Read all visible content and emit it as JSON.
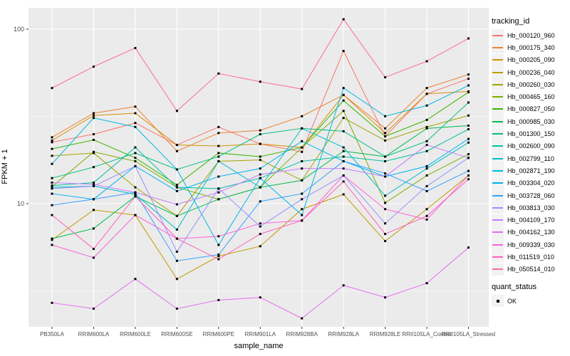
{
  "figure": {
    "background": "#FFFFFF",
    "panel_background": "#EBEBEB",
    "gridline_color": "#FFFFFF",
    "axis_text_color": "#4D4D4D",
    "tick_color": "#333333"
  },
  "chart_data": {
    "type": "line",
    "title": "",
    "xlabel": "sample_name",
    "ylabel": "FPKM + 1",
    "y_scale": "log10",
    "ylim": [
      2.0,
      132
    ],
    "y_major_ticks": [
      {
        "label": "10",
        "value": 10
      },
      {
        "label": "100",
        "value": 100
      }
    ],
    "y_minor_ticks": [
      3.1623,
      31.623
    ],
    "grid": "on",
    "legend_position": "right",
    "point_shape": "filled-square",
    "point_color": "#000000",
    "categories": [
      "PB350LA",
      "RRIM600LA",
      "RRIM600LE",
      "RRIM600SE",
      "RRIM600PE",
      "RRIM901LA",
      "RRIM928BA",
      "RRIM928LA",
      "RRIM928LE",
      "RRII105LA_Control",
      "RRII105LA_Stressed"
    ],
    "series": [
      {
        "name": "Hb_000120_960",
        "color": "#F8766D",
        "values": [
          22.5,
          25,
          29,
          21.7,
          27.5,
          22,
          19.8,
          75,
          24.3,
          42.6,
          52
        ]
      },
      {
        "name": "Hb_000175_340",
        "color": "#EB8335",
        "values": [
          24,
          33,
          36,
          20,
          25.4,
          26.3,
          31.7,
          42,
          27,
          46,
          55
        ]
      },
      {
        "name": "Hb_000205_090",
        "color": "#D89000",
        "values": [
          23,
          32,
          33,
          21.7,
          21.4,
          22,
          21,
          42,
          25.4,
          42.6,
          44
        ]
      },
      {
        "name": "Hb_000236_040",
        "color": "#C09B00",
        "values": [
          6.2,
          9.2,
          8.6,
          3.7,
          5.0,
          5.7,
          9.3,
          11.3,
          6.1,
          9.3,
          14.5
        ]
      },
      {
        "name": "Hb_000260_030",
        "color": "#A3A500",
        "values": [
          18.8,
          19.5,
          12.4,
          8.5,
          17.5,
          17.8,
          13.6,
          31,
          23,
          27.5,
          32
        ]
      },
      {
        "name": "Hb_000465_160",
        "color": "#7CAE00",
        "values": [
          12.5,
          19.8,
          17.5,
          12.4,
          10.6,
          12.4,
          21,
          34,
          10.1,
          14.5,
          19.2
        ]
      },
      {
        "name": "Hb_000827_050",
        "color": "#39B600",
        "values": [
          20.6,
          23.2,
          18.3,
          12.8,
          19.5,
          18.6,
          21,
          39,
          24.3,
          30.2,
          43.5
        ]
      },
      {
        "name": "Hb_000985_030",
        "color": "#00BB4E",
        "values": [
          6.3,
          7.2,
          11,
          8.5,
          10.6,
          12.4,
          13.6,
          20,
          18.6,
          27,
          28
        ]
      },
      {
        "name": "Hb_001300_150",
        "color": "#00BF7D",
        "values": [
          14,
          16.2,
          19.5,
          15.7,
          18.6,
          25,
          27,
          26,
          18.6,
          22.8,
          38
        ]
      },
      {
        "name": "Hb_002600_090",
        "color": "#00C1A3",
        "values": [
          12.7,
          13.2,
          21,
          12.4,
          12.2,
          14,
          17.5,
          18.6,
          17.5,
          20,
          26.7
        ]
      },
      {
        "name": "Hb_002799_110",
        "color": "#00BFC4",
        "values": [
          12.4,
          12.6,
          11.3,
          7.1,
          17.5,
          12.4,
          27,
          21,
          11.1,
          15.9,
          22.4
        ]
      },
      {
        "name": "Hb_002871_190",
        "color": "#00BAE0",
        "values": [
          16.9,
          31,
          27.5,
          15.7,
          5.8,
          14,
          8.6,
          46,
          31.7,
          36.5,
          47.6
        ]
      },
      {
        "name": "Hb_003304_020",
        "color": "#00B0F6",
        "values": [
          11.4,
          10.6,
          16.4,
          11.8,
          14.3,
          15.9,
          22.8,
          17.5,
          14.3,
          16.4,
          23.5
        ]
      },
      {
        "name": "Hb_003728_060",
        "color": "#35A2FF",
        "values": [
          9.8,
          10.6,
          11.6,
          4.7,
          5.1,
          10.3,
          11.4,
          17.5,
          14.9,
          11.8,
          15.4
        ]
      },
      {
        "name": "Hb_003813_030",
        "color": "#9590FF",
        "values": [
          12.2,
          12.6,
          16.4,
          5.3,
          12.2,
          7.4,
          10.6,
          14.5,
          7.7,
          12.6,
          18.3
        ]
      },
      {
        "name": "Hb_004109_170",
        "color": "#C77CFF",
        "values": [
          13.2,
          12.9,
          11.6,
          9.9,
          11.6,
          14.7,
          15.9,
          15.9,
          14.3,
          21.7,
          18.3
        ]
      },
      {
        "name": "Hb_004162_130",
        "color": "#E76BF3",
        "values": [
          2.7,
          2.5,
          3.7,
          2.5,
          2.8,
          2.9,
          2.2,
          3.4,
          2.9,
          3.5,
          5.6
        ]
      },
      {
        "name": "Hb_009339_030",
        "color": "#FA62DB",
        "values": [
          5.8,
          4.9,
          8.6,
          6.3,
          6.5,
          7.7,
          8.0,
          14.5,
          9.3,
          8.1,
          14.5
        ]
      },
      {
        "name": "Hb_011519_010",
        "color": "#FF62BC",
        "values": [
          8.6,
          5.5,
          11,
          6.3,
          4.8,
          6.7,
          8.0,
          13.4,
          6.7,
          8.5,
          13.8
        ]
      },
      {
        "name": "Hb_050514_010",
        "color": "#FF6A98",
        "values": [
          46,
          61,
          78,
          34,
          55.7,
          50,
          45.4,
          114,
          53,
          65.5,
          88.5
        ]
      }
    ]
  },
  "legend": {
    "tracking_title": "tracking_id",
    "quant_title": "quant_status",
    "quant_items": [
      {
        "label": "OK"
      }
    ],
    "key_background": "#F2F2F2"
  }
}
